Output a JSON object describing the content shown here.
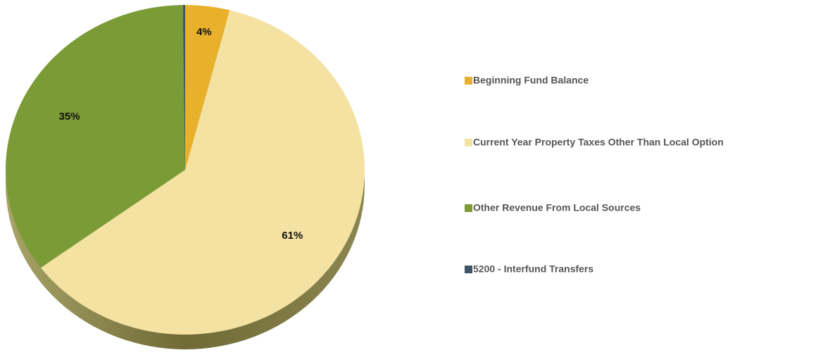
{
  "chart_data": {
    "type": "pie",
    "categories": [
      "Beginning Fund Balance",
      "Current Year Property Taxes Other Than Local Option",
      "Other Revenue From Local Sources",
      "5200 - Interfund Transfers"
    ],
    "values": [
      4,
      61,
      35,
      0.2
    ],
    "value_labels": [
      "4%",
      "61%",
      "35%",
      null
    ],
    "colors": [
      "#e9b12b",
      "#f3e2a2",
      "#7b9b37",
      "#3f5566"
    ],
    "start": "top",
    "direction": "clockwise",
    "legend": "right"
  }
}
